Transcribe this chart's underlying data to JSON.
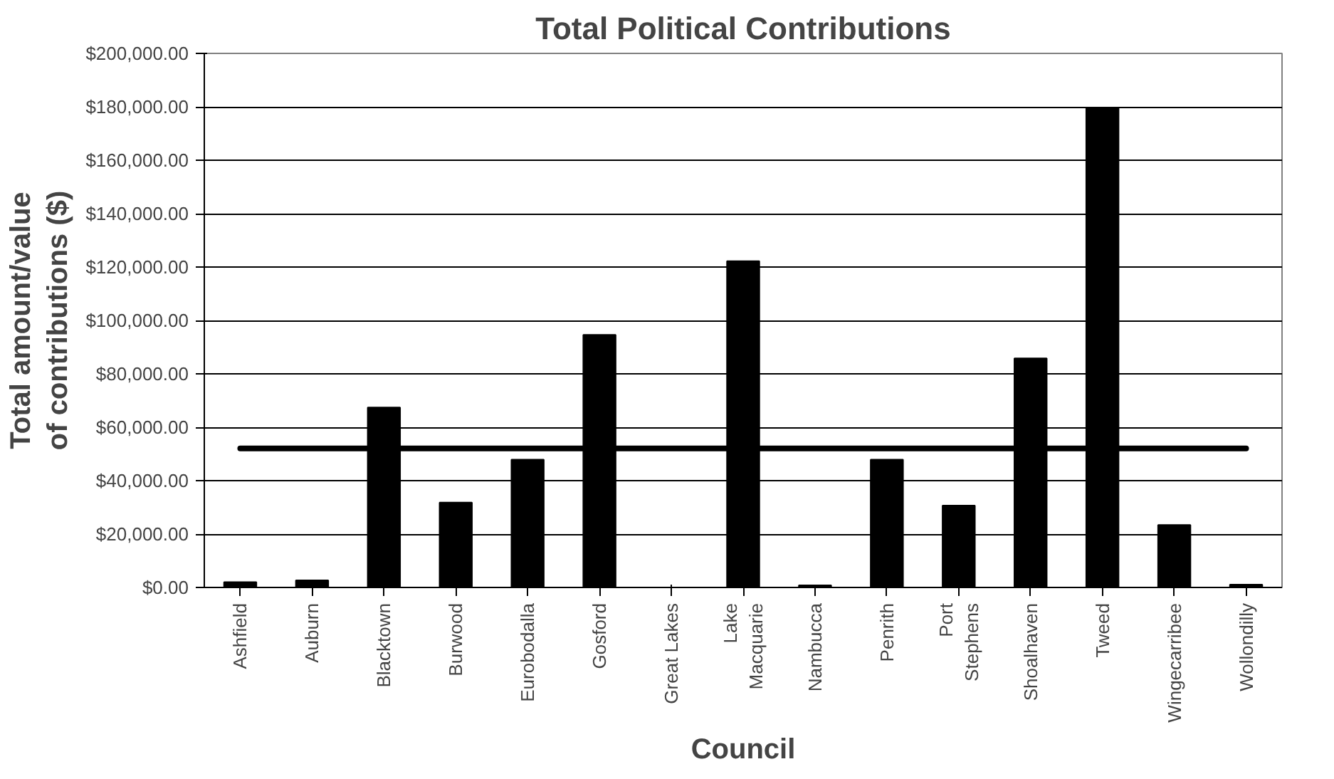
{
  "chart_data": {
    "type": "bar",
    "title": "Total Political Contributions",
    "xlabel": "Council",
    "ylabel": "Total amount/value of contributions ($)",
    "categories": [
      "Ashfield",
      "Auburn",
      "Blacktown",
      "Burwood",
      "Eurobodalla",
      "Gosford",
      "Great Lakes",
      "Lake Macquarie",
      "Nambucca",
      "Penrith",
      "Port Stephens",
      "Shoalhaven",
      "Tweed",
      "Wingecarribee",
      "Wollondilly"
    ],
    "series": [
      {
        "color": "#000000",
        "values": [
          2000,
          2700,
          67400,
          31800,
          47900,
          94600,
          0,
          122200,
          800,
          47900,
          30700,
          85800,
          179700,
          23400,
          1100
        ]
      },
      {
        "type": "line",
        "color": "#000000",
        "values": [
          52100,
          52100,
          52100,
          52100,
          52100,
          52100,
          52100,
          52100,
          52100,
          52100,
          52100,
          52100,
          52100,
          52100,
          52100
        ]
      }
    ],
    "ylim": [
      0,
      200000
    ],
    "yticks": [
      {
        "value": 0,
        "label": "$0.00"
      },
      {
        "value": 20000,
        "label": "$20,000.00"
      },
      {
        "value": 40000,
        "label": "$40,000.00"
      },
      {
        "value": 60000,
        "label": "$60,000.00"
      },
      {
        "value": 80000,
        "label": "$80,000.00"
      },
      {
        "value": 100000,
        "label": "$100,000.00"
      },
      {
        "value": 120000,
        "label": "$120,000.00"
      },
      {
        "value": 140000,
        "label": "$140,000.00"
      },
      {
        "value": 160000,
        "label": "$160,000.00"
      },
      {
        "value": 180000,
        "label": "$180,000.00"
      },
      {
        "value": 200000,
        "label": "$200,000.00"
      }
    ],
    "grid": "y"
  }
}
